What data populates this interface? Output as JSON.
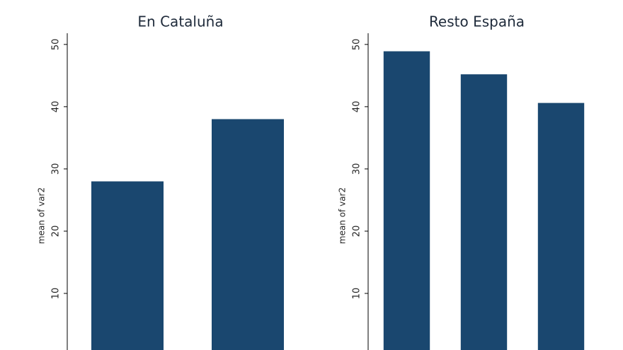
{
  "chart_data": [
    {
      "type": "bar",
      "title": "En Cataluña",
      "y_label": "mean of var2",
      "categories": [
        null,
        null
      ],
      "values": [
        28,
        38
      ],
      "color": "#1a476f",
      "ylim": [
        0,
        51.8
      ],
      "yticks": [
        10,
        20,
        30,
        40,
        50
      ]
    },
    {
      "type": "bar",
      "title": "Resto España",
      "y_label": "mean of var2",
      "categories": [
        null,
        null,
        null
      ],
      "values": [
        48.9,
        45.2,
        40.6
      ],
      "color": "#1a476f",
      "ylim": [
        0,
        51.8
      ],
      "yticks": [
        10,
        20,
        30,
        40,
        50
      ]
    }
  ]
}
